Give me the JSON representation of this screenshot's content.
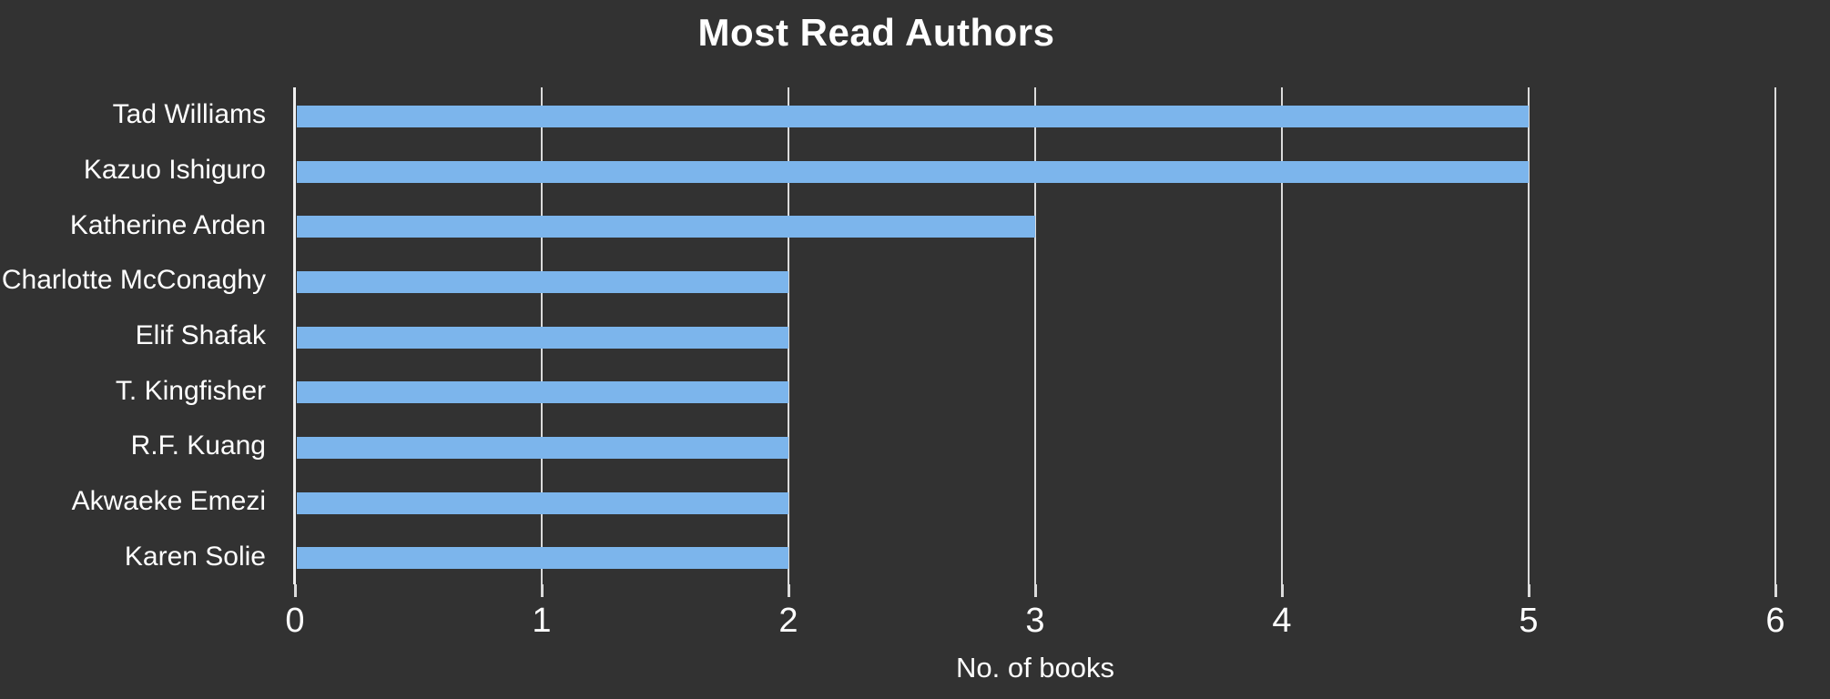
{
  "chart_data": {
    "type": "bar",
    "orientation": "horizontal",
    "title": "Most Read Authors",
    "xlabel": "No. of books",
    "ylabel": "",
    "categories": [
      "Tad Williams",
      "Kazuo Ishiguro",
      "Katherine Arden",
      "Charlotte McConaghy",
      "Elif Shafak",
      "T. Kingfisher",
      "R.F. Kuang",
      "Akwaeke Emezi",
      "Karen Solie"
    ],
    "values": [
      5,
      5,
      3,
      2,
      2,
      2,
      2,
      2,
      2
    ],
    "xlim": [
      0,
      6
    ],
    "x_ticks": [
      0,
      1,
      2,
      3,
      4,
      5,
      6
    ],
    "grid": "vertical-lines",
    "legend": "none",
    "colors": {
      "background": "#323232",
      "bar": "#7cb5ec",
      "grid": "#dcdcdc",
      "axis": "#f0f0f0",
      "text": "#ffffff"
    }
  }
}
